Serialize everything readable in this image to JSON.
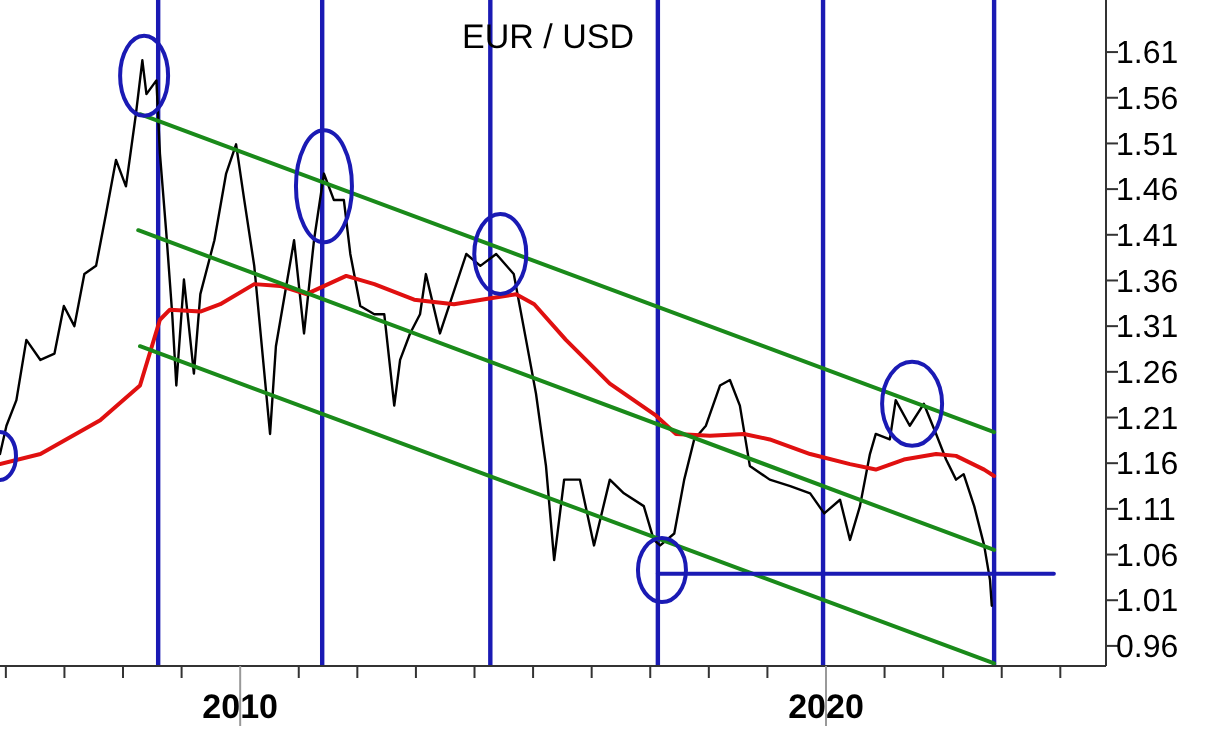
{
  "chart_data": {
    "type": "line",
    "title": "EUR / USD",
    "xlim": [
      2005.9,
      2024.78
    ],
    "ylim": [
      0.938,
      1.667
    ],
    "xticks": [
      {
        "value": 2006,
        "label": null
      },
      {
        "value": 2007,
        "label": null
      },
      {
        "value": 2008,
        "label": null
      },
      {
        "value": 2009,
        "label": null
      },
      {
        "value": 2010,
        "label": "2010"
      },
      {
        "value": 2011,
        "label": null
      },
      {
        "value": 2012,
        "label": null
      },
      {
        "value": 2013,
        "label": null
      },
      {
        "value": 2014,
        "label": null
      },
      {
        "value": 2015,
        "label": null
      },
      {
        "value": 2016,
        "label": null
      },
      {
        "value": 2017,
        "label": null
      },
      {
        "value": 2018,
        "label": null
      },
      {
        "value": 2019,
        "label": null
      },
      {
        "value": 2020,
        "label": "2020"
      },
      {
        "value": 2021,
        "label": null
      },
      {
        "value": 2022,
        "label": null
      },
      {
        "value": 2023,
        "label": null
      },
      {
        "value": 2024,
        "label": null
      }
    ],
    "yticks": [
      {
        "value": 0.96,
        "label": "0.96"
      },
      {
        "value": 1.01,
        "label": "1.01"
      },
      {
        "value": 1.06,
        "label": "1.06"
      },
      {
        "value": 1.11,
        "label": "1.11"
      },
      {
        "value": 1.16,
        "label": "1.16"
      },
      {
        "value": 1.21,
        "label": "1.21"
      },
      {
        "value": 1.26,
        "label": "1.26"
      },
      {
        "value": 1.31,
        "label": "1.31"
      },
      {
        "value": 1.36,
        "label": "1.36"
      },
      {
        "value": 1.41,
        "label": "1.41"
      },
      {
        "value": 1.46,
        "label": "1.46"
      },
      {
        "value": 1.51,
        "label": "1.51"
      },
      {
        "value": 1.56,
        "label": "1.56"
      },
      {
        "value": 1.61,
        "label": "1.61"
      }
    ],
    "grid": false,
    "series": [
      {
        "color": "#000000",
        "x": [
          2005.9,
          2006.01,
          2006.18,
          2006.35,
          2006.59,
          2006.83,
          2006.99,
          2007.17,
          2007.34,
          2007.54,
          2007.71,
          2007.88,
          2008.05,
          2008.22,
          2008.33,
          2008.4,
          2008.57,
          2008.63,
          2008.74,
          2008.84,
          2008.91,
          2009.04,
          2009.21,
          2009.32,
          2009.56,
          2009.76,
          2009.93,
          2010.07,
          2010.24,
          2010.51,
          2010.61,
          2010.92,
          2011.09,
          2011.26,
          2011.43,
          2011.6,
          2011.77,
          2011.88,
          2012.05,
          2012.29,
          2012.46,
          2012.63,
          2012.73,
          2012.9,
          2013.07,
          2013.17,
          2013.41,
          2013.86,
          2014.1,
          2014.37,
          2014.67,
          2014.88,
          2015.05,
          2015.22,
          2015.36,
          2015.53,
          2015.8,
          2016.04,
          2016.31,
          2016.55,
          2016.89,
          2017.06,
          2017.17,
          2017.41,
          2017.58,
          2017.75,
          2017.95,
          2018.19,
          2018.36,
          2018.53,
          2018.7,
          2019.04,
          2019.39,
          2019.73,
          2019.97,
          2020.24,
          2020.41,
          2020.58,
          2020.75,
          2020.85,
          2021.09,
          2021.19,
          2021.43,
          2021.67,
          2021.88,
          2022.05,
          2022.22,
          2022.35,
          2022.53,
          2022.7,
          2022.8,
          2022.83
        ],
        "values": [
          1.17,
          1.201,
          1.229,
          1.295,
          1.273,
          1.28,
          1.332,
          1.31,
          1.367,
          1.376,
          1.433,
          1.492,
          1.463,
          1.542,
          1.601,
          1.564,
          1.579,
          1.499,
          1.411,
          1.323,
          1.245,
          1.361,
          1.258,
          1.345,
          1.404,
          1.477,
          1.509,
          1.448,
          1.376,
          1.192,
          1.288,
          1.404,
          1.302,
          1.404,
          1.477,
          1.448,
          1.448,
          1.389,
          1.332,
          1.323,
          1.323,
          1.223,
          1.273,
          1.302,
          1.323,
          1.367,
          1.302,
          1.389,
          1.376,
          1.389,
          1.367,
          1.295,
          1.236,
          1.157,
          1.054,
          1.142,
          1.142,
          1.07,
          1.142,
          1.127,
          1.113,
          1.076,
          1.07,
          1.083,
          1.142,
          1.186,
          1.201,
          1.245,
          1.251,
          1.223,
          1.157,
          1.142,
          1.135,
          1.127,
          1.105,
          1.12,
          1.076,
          1.113,
          1.17,
          1.192,
          1.186,
          1.229,
          1.201,
          1.225,
          1.192,
          1.164,
          1.142,
          1.148,
          1.113,
          1.07,
          1.032,
          1.004
        ]
      },
      {
        "color": "#e01010",
        "x": [
          2005.9,
          2006.59,
          2007.61,
          2008.29,
          2008.63,
          2008.8,
          2009.32,
          2009.66,
          2010.24,
          2010.68,
          2011.13,
          2011.81,
          2012.29,
          2012.97,
          2013.65,
          2014.33,
          2014.71,
          2015.02,
          2015.56,
          2016.31,
          2017.1,
          2017.44,
          2018.02,
          2018.6,
          2019.04,
          2019.73,
          2020.41,
          2020.85,
          2021.33,
          2021.88,
          2022.22,
          2022.7,
          2022.87
        ],
        "values": [
          1.159,
          1.17,
          1.207,
          1.245,
          1.317,
          1.328,
          1.326,
          1.334,
          1.356,
          1.354,
          1.345,
          1.365,
          1.356,
          1.339,
          1.334,
          1.341,
          1.345,
          1.334,
          1.295,
          1.247,
          1.212,
          1.192,
          1.19,
          1.192,
          1.186,
          1.17,
          1.159,
          1.153,
          1.164,
          1.17,
          1.168,
          1.153,
          1.146
        ]
      },
      {
        "color": "#1a8a1a",
        "x": [
          2008.29,
          2022.87
        ],
        "values": [
          1.542,
          1.194
        ]
      },
      {
        "color": "#1a8a1a",
        "x": [
          2008.26,
          2022.87
        ],
        "values": [
          1.415,
          1.065
        ]
      },
      {
        "color": "#1a8a1a",
        "x": [
          2008.29,
          2022.87
        ],
        "values": [
          1.288,
          0.941
        ]
      },
      {
        "color": "#1a1ab4",
        "x": [
          2017.13,
          2023.89
        ],
        "values": [
          1.039,
          1.039
        ]
      }
    ],
    "ref_lines": [
      {
        "axis": "x",
        "value": 2008.6,
        "color": "#1a1ab4"
      },
      {
        "axis": "x",
        "value": 2011.4,
        "color": "#1a1ab4"
      },
      {
        "axis": "x",
        "value": 2014.27,
        "color": "#1a1ab4"
      },
      {
        "axis": "x",
        "value": 2017.13,
        "color": "#1a1ab4"
      },
      {
        "axis": "x",
        "value": 2019.95,
        "color": "#1a1ab4"
      },
      {
        "axis": "x",
        "value": 2022.87,
        "color": "#1a1ab4"
      }
    ]
  }
}
